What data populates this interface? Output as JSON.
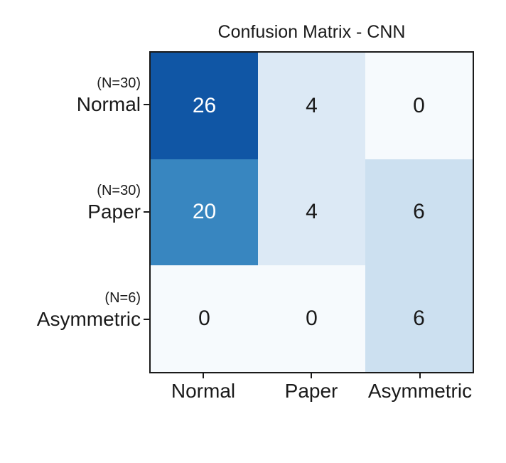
{
  "chart_data": {
    "type": "heatmap",
    "title": "Confusion Matrix - CNN",
    "matrix": [
      [
        26,
        4,
        0
      ],
      [
        20,
        4,
        6
      ],
      [
        0,
        0,
        6
      ]
    ],
    "rows": [
      {
        "count": "(N=30)",
        "label": "Normal",
        "values": [
          26,
          4,
          0
        ]
      },
      {
        "count": "(N=30)",
        "label": "Paper",
        "values": [
          20,
          4,
          6
        ]
      },
      {
        "count": "(N=6)",
        "label": "Asymmetric",
        "values": [
          0,
          0,
          6
        ]
      }
    ],
    "columns": [
      {
        "label": "Normal"
      },
      {
        "label": "Paper"
      },
      {
        "label": "Asymmetric"
      }
    ],
    "color_scale": {
      "colormap": "Blues",
      "vmin": 0,
      "vmax": 30
    },
    "legend": "none",
    "grid": "off",
    "cells": [
      {
        "value": 26,
        "bg": "#1056a5",
        "fg": "#ffffff"
      },
      {
        "value": 4,
        "bg": "#dce9f5",
        "fg": "#1a1a1a"
      },
      {
        "value": 0,
        "bg": "#f6fafd",
        "fg": "#1a1a1a"
      },
      {
        "value": 20,
        "bg": "#3886c0",
        "fg": "#ffffff"
      },
      {
        "value": 4,
        "bg": "#dce9f5",
        "fg": "#1a1a1a"
      },
      {
        "value": 6,
        "bg": "#cce0f0",
        "fg": "#1a1a1a"
      },
      {
        "value": 0,
        "bg": "#f6fafd",
        "fg": "#1a1a1a"
      },
      {
        "value": 0,
        "bg": "#f6fafd",
        "fg": "#1a1a1a"
      },
      {
        "value": 6,
        "bg": "#cce0f0",
        "fg": "#1a1a1a"
      }
    ]
  }
}
